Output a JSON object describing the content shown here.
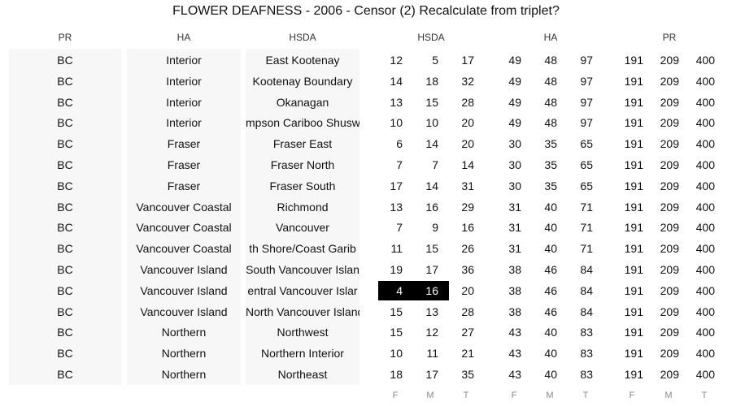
{
  "title": "FLOWER DEAFNESS - 2006 - Censor (2) Recalculate from triplet?",
  "headers": [
    "PR",
    "HA",
    "HSDA",
    "HSDA",
    "HA",
    "PR"
  ],
  "footer": [
    "F",
    "M",
    "T",
    "F",
    "M",
    "T",
    "F",
    "M",
    "T"
  ],
  "rows": [
    {
      "pr": "BC",
      "ha": "Interior",
      "hsda": "East Kootenay",
      "vals": [
        "12",
        "5",
        "17",
        "49",
        "48",
        "97",
        "191",
        "209",
        "400"
      ]
    },
    {
      "pr": "BC",
      "ha": "Interior",
      "hsda": "Kootenay Boundary",
      "vals": [
        "14",
        "18",
        "32",
        "49",
        "48",
        "97",
        "191",
        "209",
        "400"
      ]
    },
    {
      "pr": "BC",
      "ha": "Interior",
      "hsda": "Okanagan",
      "vals": [
        "13",
        "15",
        "28",
        "49",
        "48",
        "97",
        "191",
        "209",
        "400"
      ]
    },
    {
      "pr": "BC",
      "ha": "Interior",
      "hsda": "mpson Cariboo Shusw",
      "vals": [
        "10",
        "10",
        "20",
        "49",
        "48",
        "97",
        "191",
        "209",
        "400"
      ]
    },
    {
      "pr": "BC",
      "ha": "Fraser",
      "hsda": "Fraser East",
      "vals": [
        "6",
        "14",
        "20",
        "30",
        "35",
        "65",
        "191",
        "209",
        "400"
      ]
    },
    {
      "pr": "BC",
      "ha": "Fraser",
      "hsda": "Fraser North",
      "vals": [
        "7",
        "7",
        "14",
        "30",
        "35",
        "65",
        "191",
        "209",
        "400"
      ]
    },
    {
      "pr": "BC",
      "ha": "Fraser",
      "hsda": "Fraser South",
      "vals": [
        "17",
        "14",
        "31",
        "30",
        "35",
        "65",
        "191",
        "209",
        "400"
      ]
    },
    {
      "pr": "BC",
      "ha": "Vancouver Coastal",
      "hsda": "Richmond",
      "vals": [
        "13",
        "16",
        "29",
        "31",
        "40",
        "71",
        "191",
        "209",
        "400"
      ]
    },
    {
      "pr": "BC",
      "ha": "Vancouver Coastal",
      "hsda": "Vancouver",
      "vals": [
        "7",
        "9",
        "16",
        "31",
        "40",
        "71",
        "191",
        "209",
        "400"
      ]
    },
    {
      "pr": "BC",
      "ha": "Vancouver Coastal",
      "hsda": "th Shore/Coast Garib",
      "vals": [
        "11",
        "15",
        "26",
        "31",
        "40",
        "71",
        "191",
        "209",
        "400"
      ]
    },
    {
      "pr": "BC",
      "ha": "Vancouver Island",
      "hsda": "South Vancouver Islan",
      "vals": [
        "19",
        "17",
        "36",
        "38",
        "46",
        "84",
        "191",
        "209",
        "400"
      ]
    },
    {
      "pr": "BC",
      "ha": "Vancouver Island",
      "hsda": "entral Vancouver Islar",
      "vals": [
        "4",
        "16",
        "20",
        "38",
        "46",
        "84",
        "191",
        "209",
        "400"
      ]
    },
    {
      "pr": "BC",
      "ha": "Vancouver Island",
      "hsda": "North Vancouver Island",
      "vals": [
        "15",
        "13",
        "28",
        "38",
        "46",
        "84",
        "191",
        "209",
        "400"
      ]
    },
    {
      "pr": "BC",
      "ha": "Northern",
      "hsda": "Northwest",
      "vals": [
        "15",
        "12",
        "27",
        "43",
        "40",
        "83",
        "191",
        "209",
        "400"
      ]
    },
    {
      "pr": "BC",
      "ha": "Northern",
      "hsda": "Northern Interior",
      "vals": [
        "10",
        "11",
        "21",
        "43",
        "40",
        "83",
        "191",
        "209",
        "400"
      ]
    },
    {
      "pr": "BC",
      "ha": "Northern",
      "hsda": "Northeast",
      "vals": [
        "18",
        "17",
        "35",
        "43",
        "40",
        "83",
        "191",
        "209",
        "400"
      ]
    }
  ],
  "highlight": {
    "row": 11,
    "cols": [
      0,
      1
    ],
    "color": "#000000"
  }
}
